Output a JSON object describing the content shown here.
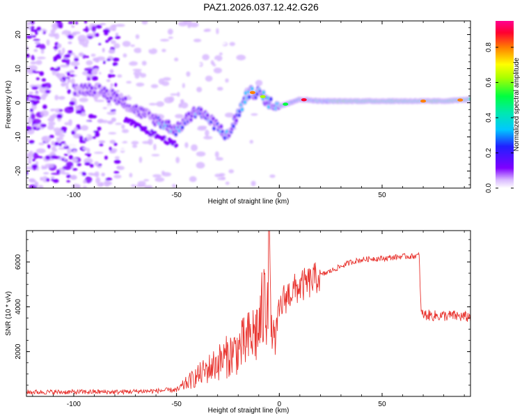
{
  "page": {
    "title": "PAZ1.2026.037.12.42.G26"
  },
  "colors": {
    "snr_line": "#e8332e",
    "background": "#ffffff",
    "colormap": [
      "#ffffff",
      "#c9a8ff",
      "#7f00ff",
      "#1e1eff",
      "#00c8ff",
      "#00ff80",
      "#aaff00",
      "#ffff00",
      "#ff8000",
      "#ff0040",
      "#ff0080"
    ]
  },
  "chart_data": [
    {
      "type": "heatmap",
      "title": "",
      "xlabel": "Height of straight line (km)",
      "ylabel": "Frequency (Hz)",
      "xlim": [
        -123,
        93
      ],
      "ylim": [
        -25,
        24
      ],
      "x_ticks": [
        -100,
        -50,
        0,
        50
      ],
      "y_ticks": [
        20,
        10,
        0,
        -10,
        -20
      ],
      "colorbar": {
        "label": "Normalized spectral amplitude",
        "range": [
          0.0,
          0.95
        ],
        "ticks": [
          0.0,
          0.2,
          0.4,
          0.6,
          0.8
        ]
      },
      "ridge": {
        "description_points_x": [
          -90,
          -80,
          -70,
          -60,
          -50,
          -40,
          -30,
          -25,
          -20,
          -15,
          -10,
          -5,
          0,
          5,
          10,
          20,
          40,
          60,
          80,
          93
        ],
        "description_points_freq": [
          4,
          2,
          -2,
          -5,
          -8,
          -2,
          -7,
          -10,
          -3,
          3,
          3,
          0,
          -1,
          0,
          1,
          0.5,
          0.5,
          0.5,
          0.5,
          1
        ]
      }
    },
    {
      "type": "line",
      "title": "",
      "xlabel": "Height of straight line (km)",
      "ylabel": "SNR (10 * v/v)",
      "xlim": [
        -123,
        93
      ],
      "ylim": [
        0,
        7400
      ],
      "x_ticks": [
        -100,
        -50,
        0,
        50
      ],
      "y_ticks": [
        2000,
        4000,
        6000
      ],
      "series": [
        {
          "name": "SNR",
          "x": [
            -123,
            -110,
            -100,
            -90,
            -80,
            -70,
            -60,
            -55,
            -50,
            -45,
            -40,
            -35,
            -30,
            -25,
            -20,
            -15,
            -10,
            -8,
            -6,
            -5,
            -4,
            -2,
            0,
            2,
            5,
            10,
            15,
            20,
            25,
            30,
            35,
            40,
            45,
            50,
            55,
            60,
            65,
            68,
            69,
            70,
            75,
            80,
            85,
            90,
            93
          ],
          "values": [
            150,
            150,
            150,
            160,
            150,
            180,
            200,
            230,
            250,
            600,
            900,
            1200,
            1500,
            1800,
            2100,
            2500,
            3000,
            3800,
            4500,
            7400,
            3000,
            2500,
            3800,
            4300,
            4600,
            4900,
            5100,
            5400,
            5600,
            5800,
            6000,
            6100,
            6150,
            6150,
            6200,
            6250,
            6250,
            6300,
            3700,
            3650,
            3600,
            3600,
            3600,
            3550,
            3550
          ]
        }
      ]
    }
  ]
}
